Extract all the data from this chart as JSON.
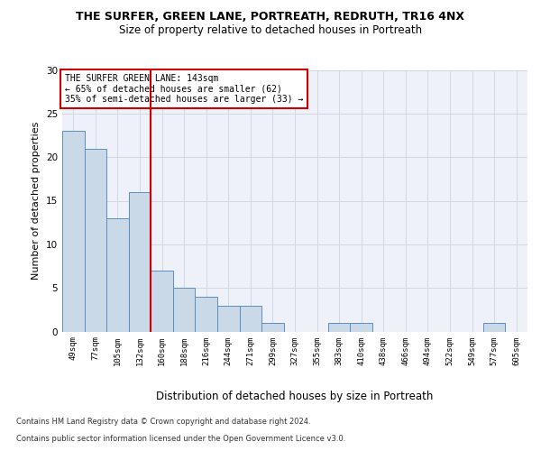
{
  "title": "THE SURFER, GREEN LANE, PORTREATH, REDRUTH, TR16 4NX",
  "subtitle": "Size of property relative to detached houses in Portreath",
  "xlabel": "Distribution of detached houses by size in Portreath",
  "ylabel": "Number of detached properties",
  "categories": [
    "49sqm",
    "77sqm",
    "105sqm",
    "132sqm",
    "160sqm",
    "188sqm",
    "216sqm",
    "244sqm",
    "271sqm",
    "299sqm",
    "327sqm",
    "355sqm",
    "383sqm",
    "410sqm",
    "438sqm",
    "466sqm",
    "494sqm",
    "522sqm",
    "549sqm",
    "577sqm",
    "605sqm"
  ],
  "values": [
    23,
    21,
    13,
    16,
    7,
    5,
    4,
    3,
    3,
    1,
    0,
    0,
    1,
    1,
    0,
    0,
    0,
    0,
    0,
    1,
    0
  ],
  "bar_color": "#c9d9e8",
  "bar_edge_color": "#5a8fc0",
  "grid_color": "#d0d8e4",
  "vline_x": 3.5,
  "vline_color": "#cc0000",
  "annotation_line1": "THE SURFER GREEN LANE: 143sqm",
  "annotation_line2": "← 65% of detached houses are smaller (62)",
  "annotation_line3": "35% of semi-detached houses are larger (33) →",
  "annotation_box_color": "#ffffff",
  "annotation_box_edge": "#cc0000",
  "ylim": [
    0,
    30
  ],
  "yticks": [
    0,
    5,
    10,
    15,
    20,
    25,
    30
  ],
  "footer1": "Contains HM Land Registry data © Crown copyright and database right 2024.",
  "footer2": "Contains public sector information licensed under the Open Government Licence v3.0.",
  "bg_color": "#eef2f8",
  "title_fontsize": 9,
  "subtitle_fontsize": 8.5,
  "ylabel_fontsize": 8,
  "xlabel_fontsize": 8.5,
  "tick_fontsize": 6.5,
  "annot_fontsize": 7,
  "footer_fontsize": 6
}
